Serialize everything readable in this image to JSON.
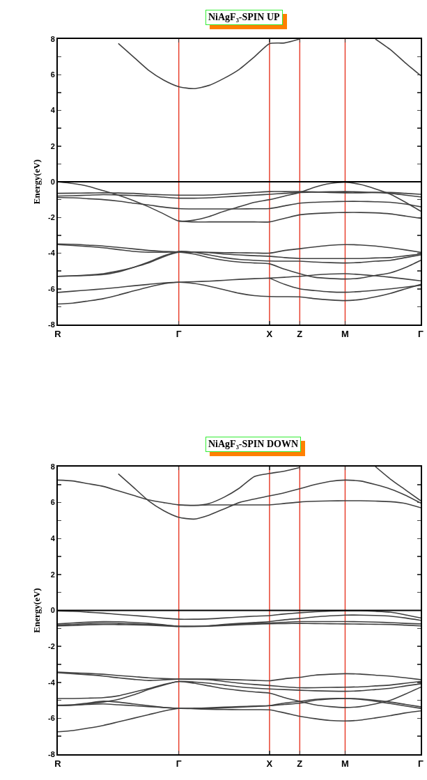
{
  "chart_data": [
    {
      "type": "line",
      "title": "NiAgF₃-SPIN UP",
      "ylabel": "Energy(eV)",
      "grid": false,
      "categories": [
        "R",
        null,
        null,
        null,
        null,
        null,
        null,
        null,
        "Γ",
        null,
        null,
        null,
        null,
        null,
        "X",
        null,
        "Z",
        null,
        null,
        "M",
        null,
        null,
        null,
        null,
        "Γ"
      ],
      "ylim": [
        -8,
        8
      ],
      "yticks": [
        -8,
        -6,
        -4,
        -2,
        0,
        2,
        4,
        6,
        8,
        {
          "value": -7,
          "label": null
        },
        {
          "value": -5,
          "label": null
        },
        {
          "value": -3,
          "label": null
        },
        {
          "value": -1,
          "label": null
        },
        {
          "value": 1,
          "label": null
        },
        {
          "value": 3,
          "label": null
        },
        {
          "value": 5,
          "label": null
        },
        {
          "value": 7,
          "label": null
        }
      ],
      "ref_lines": [
        {
          "axis": "x",
          "value": "Γ",
          "color": "#e8412f"
        },
        {
          "axis": "x",
          "value": "X",
          "color": "#e8412f"
        },
        {
          "axis": "x",
          "value": "Z",
          "color": "#e8412f"
        },
        {
          "axis": "x",
          "value": "M",
          "color": "#e8412f"
        },
        {
          "axis": "y",
          "value": 0,
          "color": "#000000"
        }
      ],
      "series": [
        {
          "color": "#404040",
          "values": [
            null,
            null,
            null,
            null,
            7.75,
            7.0,
            6.25,
            5.7,
            5.33,
            5.22,
            5.4,
            5.8,
            6.3,
            7.0,
            7.74,
            7.78,
            8.0,
            null,
            null,
            null,
            null,
            null,
            null,
            null,
            null
          ]
        },
        {
          "color": "#404040",
          "values": [
            null,
            null,
            null,
            null,
            null,
            null,
            null,
            null,
            null,
            null,
            null,
            null,
            null,
            null,
            null,
            null,
            null,
            null,
            null,
            null,
            null,
            8.0,
            7.4,
            6.65,
            5.95
          ]
        },
        {
          "color": "#404040",
          "values": [
            0,
            -0.1,
            -0.25,
            -0.5,
            -0.75,
            -1.05,
            -1.4,
            -1.8,
            -2.2,
            -2.15,
            -1.95,
            -1.65,
            -1.4,
            -1.15,
            -1.0,
            -0.8,
            -0.6,
            -0.3,
            -0.1,
            -0.03,
            -0.15,
            -0.4,
            -0.7,
            -1.15,
            -1.65
          ]
        },
        {
          "color": "#404040",
          "values": [
            -0.65,
            -0.64,
            -0.63,
            -0.62,
            -0.63,
            -0.65,
            -0.7,
            -0.73,
            -0.75,
            -0.75,
            -0.74,
            -0.7,
            -0.65,
            -0.6,
            -0.55,
            -0.55,
            -0.55,
            -0.57,
            -0.6,
            -0.62,
            -0.62,
            -0.6,
            -0.6,
            -0.65,
            -0.7
          ]
        },
        {
          "color": "#404040",
          "values": [
            -0.8,
            -0.78,
            -0.75,
            -0.72,
            -0.74,
            -0.77,
            -0.8,
            -0.86,
            -0.92,
            -0.92,
            -0.9,
            -0.85,
            -0.8,
            -0.75,
            -0.7,
            -0.65,
            -0.6,
            -0.58,
            -0.56,
            -0.55,
            -0.57,
            -0.6,
            -0.65,
            -0.75,
            -0.85
          ]
        },
        {
          "color": "#404040",
          "values": [
            -0.88,
            -0.9,
            -0.95,
            -1.0,
            -1.08,
            -1.2,
            -1.3,
            -1.42,
            -1.5,
            -1.52,
            -1.52,
            -1.52,
            -1.52,
            -1.51,
            -1.5,
            -1.35,
            -1.2,
            -1.15,
            -1.12,
            -1.1,
            -1.1,
            -1.12,
            -1.15,
            -1.25,
            -1.4
          ]
        },
        {
          "color": "#404040",
          "values": [
            null,
            null,
            null,
            null,
            null,
            null,
            null,
            null,
            -2.2,
            -2.25,
            -2.25,
            -2.25,
            -2.25,
            -2.25,
            -2.25,
            -2.05,
            -1.85,
            -1.78,
            -1.74,
            -1.72,
            -1.72,
            -1.74,
            -1.8,
            -1.92,
            -2.05
          ]
        },
        {
          "color": "#404040",
          "values": [
            -3.48,
            -3.5,
            -3.55,
            -3.6,
            -3.68,
            -3.76,
            -3.85,
            -3.9,
            -3.93,
            -3.94,
            -3.95,
            -3.97,
            -3.98,
            -3.99,
            -4.0,
            -3.85,
            -3.75,
            -3.65,
            -3.56,
            -3.52,
            -3.54,
            -3.6,
            -3.7,
            -3.82,
            -3.95
          ]
        },
        {
          "color": "#404040",
          "values": [
            -3.52,
            -3.57,
            -3.63,
            -3.7,
            -3.8,
            -3.9,
            -3.95,
            -3.95,
            -3.93,
            -3.95,
            -3.97,
            -4.05,
            -4.1,
            -4.14,
            -4.17,
            -4.25,
            -4.3,
            -4.3,
            -4.3,
            -4.3,
            -4.3,
            -4.27,
            -4.25,
            -4.15,
            -4.05
          ]
        },
        {
          "color": "#404040",
          "values": [
            -5.3,
            -5.28,
            -5.25,
            -5.2,
            -5.05,
            -4.8,
            -4.5,
            -4.15,
            -3.9,
            -3.95,
            -4.1,
            -4.25,
            -4.35,
            -4.4,
            -4.44,
            -4.45,
            -4.45,
            -4.5,
            -4.53,
            -4.55,
            -4.52,
            -4.45,
            -4.4,
            -4.25,
            -4.1
          ]
        },
        {
          "color": "#404040",
          "values": [
            -5.3,
            -5.27,
            -5.22,
            -5.15,
            -5.0,
            -4.8,
            -4.55,
            -4.2,
            -3.95,
            -4.05,
            -4.25,
            -4.4,
            -4.5,
            -4.55,
            -4.6,
            -4.9,
            -5.15,
            -5.35,
            -5.42,
            -5.45,
            -5.4,
            -5.25,
            -5.1,
            -4.8,
            -4.4
          ]
        },
        {
          "color": "#404040",
          "values": [
            -6.2,
            -6.13,
            -6.07,
            -6.0,
            -5.92,
            -5.83,
            -5.75,
            -5.67,
            -5.63,
            -5.6,
            -5.57,
            -5.52,
            -5.47,
            -5.43,
            -5.4,
            -5.35,
            -5.3,
            -5.22,
            -5.17,
            -5.15,
            -5.2,
            -5.27,
            -5.35,
            -5.45,
            -5.55
          ]
        },
        {
          "color": "#404040",
          "values": [
            null,
            null,
            null,
            null,
            null,
            null,
            null,
            null,
            null,
            null,
            null,
            null,
            null,
            null,
            -5.4,
            -5.75,
            -6.0,
            -6.1,
            -6.17,
            -6.19,
            -6.15,
            -6.08,
            -6.0,
            -5.9,
            -5.8
          ]
        },
        {
          "color": "#404040",
          "values": [
            -6.85,
            -6.8,
            -6.68,
            -6.55,
            -6.35,
            -6.12,
            -5.9,
            -5.72,
            -5.63,
            -5.7,
            -5.85,
            -6.05,
            -6.25,
            -6.38,
            -6.43,
            -6.44,
            -6.45,
            -6.55,
            -6.62,
            -6.66,
            -6.6,
            -6.45,
            -6.25,
            -6.0,
            -5.75
          ]
        }
      ]
    },
    {
      "type": "line",
      "title": "NiAgF₃-SPIN DOWN",
      "ylabel": "Energy(eV)",
      "grid": false,
      "categories": [
        "R",
        null,
        null,
        null,
        null,
        null,
        null,
        null,
        "Γ",
        null,
        null,
        null,
        null,
        null,
        "X",
        null,
        "Z",
        null,
        null,
        "M",
        null,
        null,
        null,
        null,
        "Γ"
      ],
      "ylim": [
        -8,
        8
      ],
      "yticks": [
        -8,
        -6,
        -4,
        -2,
        0,
        2,
        4,
        6,
        8,
        {
          "value": -7,
          "label": null
        },
        {
          "value": -5,
          "label": null
        },
        {
          "value": -3,
          "label": null
        },
        {
          "value": -1,
          "label": null
        },
        {
          "value": 1,
          "label": null
        },
        {
          "value": 3,
          "label": null
        },
        {
          "value": 5,
          "label": null
        },
        {
          "value": 7,
          "label": null
        }
      ],
      "ref_lines": [
        {
          "axis": "x",
          "value": "Γ",
          "color": "#e8412f"
        },
        {
          "axis": "x",
          "value": "X",
          "color": "#e8412f"
        },
        {
          "axis": "x",
          "value": "Z",
          "color": "#e8412f"
        },
        {
          "axis": "x",
          "value": "M",
          "color": "#e8412f"
        },
        {
          "axis": "y",
          "value": 0,
          "color": "#000000"
        }
      ],
      "series": [
        {
          "color": "#404040",
          "values": [
            7.25,
            7.2,
            7.05,
            6.9,
            6.65,
            6.4,
            6.15,
            6.0,
            5.87,
            5.85,
            5.87,
            5.87,
            5.87,
            5.87,
            5.87,
            5.95,
            6.03,
            6.07,
            6.09,
            6.1,
            6.1,
            6.08,
            6.05,
            5.95,
            5.71
          ]
        },
        {
          "color": "#404040",
          "values": [
            null,
            null,
            null,
            null,
            7.6,
            6.85,
            6.1,
            5.55,
            5.18,
            5.08,
            5.3,
            5.65,
            6.0,
            6.2,
            6.37,
            6.55,
            6.77,
            7.0,
            7.18,
            7.25,
            7.2,
            7.0,
            6.75,
            6.4,
            5.97
          ]
        },
        {
          "color": "#404040",
          "values": [
            null,
            null,
            null,
            null,
            null,
            null,
            null,
            null,
            5.87,
            5.84,
            5.95,
            6.3,
            6.8,
            7.45,
            7.62,
            7.75,
            7.95,
            null,
            null,
            null,
            null,
            null,
            null,
            null,
            null
          ]
        },
        {
          "color": "#404040",
          "values": [
            null,
            null,
            null,
            null,
            null,
            null,
            null,
            null,
            null,
            null,
            null,
            null,
            null,
            null,
            null,
            null,
            null,
            null,
            null,
            null,
            null,
            8.0,
            7.3,
            6.7,
            6.1
          ]
        },
        {
          "color": "#404040",
          "values": [
            -0.03,
            -0.05,
            -0.1,
            -0.15,
            -0.22,
            -0.28,
            -0.35,
            -0.43,
            -0.49,
            -0.49,
            -0.47,
            -0.42,
            -0.37,
            -0.32,
            -0.29,
            -0.2,
            -0.13,
            -0.08,
            -0.04,
            -0.02,
            -0.02,
            -0.05,
            -0.1,
            -0.25,
            -0.42
          ]
        },
        {
          "color": "#404040",
          "values": [
            -0.75,
            -0.7,
            -0.65,
            -0.62,
            -0.63,
            -0.67,
            -0.72,
            -0.8,
            -0.88,
            -0.88,
            -0.85,
            -0.78,
            -0.72,
            -0.67,
            -0.62,
            -0.52,
            -0.45,
            -0.36,
            -0.3,
            -0.26,
            -0.26,
            -0.28,
            -0.32,
            -0.42,
            -0.55
          ]
        },
        {
          "color": "#404040",
          "values": [
            -0.82,
            -0.78,
            -0.73,
            -0.7,
            -0.72,
            -0.75,
            -0.78,
            -0.83,
            -0.88,
            -0.88,
            -0.86,
            -0.8,
            -0.75,
            -0.72,
            -0.7,
            -0.66,
            -0.62,
            -0.62,
            -0.62,
            -0.62,
            -0.63,
            -0.65,
            -0.68,
            -0.72,
            -0.75
          ]
        },
        {
          "color": "#404040",
          "values": [
            -0.86,
            -0.84,
            -0.8,
            -0.78,
            -0.79,
            -0.8,
            -0.82,
            -0.86,
            -0.9,
            -0.9,
            -0.88,
            -0.84,
            -0.8,
            -0.77,
            -0.74,
            -0.73,
            -0.72,
            -0.73,
            -0.74,
            -0.75,
            -0.76,
            -0.77,
            -0.78,
            -0.82,
            -0.86
          ]
        },
        {
          "color": "#404040",
          "values": [
            -3.43,
            -3.47,
            -3.5,
            -3.55,
            -3.62,
            -3.68,
            -3.75,
            -3.79,
            -3.82,
            -3.82,
            -3.82,
            -3.84,
            -3.86,
            -3.89,
            -3.91,
            -3.8,
            -3.72,
            -3.6,
            -3.55,
            -3.52,
            -3.54,
            -3.6,
            -3.66,
            -3.75,
            -3.85
          ]
        },
        {
          "color": "#404040",
          "values": [
            -3.47,
            -3.52,
            -3.58,
            -3.65,
            -3.75,
            -3.83,
            -3.9,
            -3.86,
            -3.82,
            -3.83,
            -3.85,
            -3.95,
            -4.05,
            -4.12,
            -4.18,
            -4.25,
            -4.3,
            -4.3,
            -4.28,
            -4.27,
            -4.25,
            -4.2,
            -4.15,
            -4.05,
            -3.95
          ]
        },
        {
          "color": "#404040",
          "values": [
            -4.9,
            -4.9,
            -4.88,
            -4.85,
            -4.75,
            -4.55,
            -4.35,
            -4.12,
            -3.95,
            -3.98,
            -4.05,
            -4.15,
            -4.25,
            -4.32,
            -4.37,
            -4.4,
            -4.44,
            -4.47,
            -4.49,
            -4.5,
            -4.47,
            -4.4,
            -4.33,
            -4.2,
            -4.08
          ]
        },
        {
          "color": "#404040",
          "values": [
            -5.3,
            -5.28,
            -5.2,
            -5.1,
            -4.95,
            -4.7,
            -4.4,
            -4.15,
            -3.95,
            -4.05,
            -4.2,
            -4.35,
            -4.45,
            -4.53,
            -4.6,
            -4.85,
            -5.06,
            -5.25,
            -5.35,
            -5.4,
            -5.35,
            -5.2,
            -5.0,
            -4.65,
            -4.27
          ]
        },
        {
          "color": "#404040",
          "values": [
            -5.3,
            -5.25,
            -5.15,
            -5.05,
            -5.1,
            -5.2,
            -5.3,
            -5.4,
            -5.45,
            -5.44,
            -5.42,
            -5.38,
            -5.35,
            -5.32,
            -5.3,
            -5.23,
            -5.16,
            -5.0,
            -4.93,
            -4.9,
            -4.92,
            -5.0,
            -5.1,
            -5.23,
            -5.36
          ]
        },
        {
          "color": "#404040",
          "values": [
            -5.27,
            -5.26,
            -5.23,
            -5.2,
            -5.25,
            -5.3,
            -5.35,
            -5.4,
            -5.45,
            -5.45,
            -5.45,
            -5.42,
            -5.38,
            -5.34,
            -5.3,
            -5.15,
            -5.06,
            -4.95,
            -4.9,
            -4.9,
            -4.95,
            -5.05,
            -5.18,
            -5.32,
            -5.45
          ]
        },
        {
          "color": "#404040",
          "values": [
            -6.75,
            -6.68,
            -6.55,
            -6.4,
            -6.2,
            -6.0,
            -5.8,
            -5.6,
            -5.45,
            -5.47,
            -5.5,
            -5.51,
            -5.52,
            -5.52,
            -5.53,
            -5.7,
            -5.89,
            -6.02,
            -6.12,
            -6.15,
            -6.1,
            -5.98,
            -5.85,
            -5.7,
            -5.59
          ]
        }
      ]
    }
  ]
}
